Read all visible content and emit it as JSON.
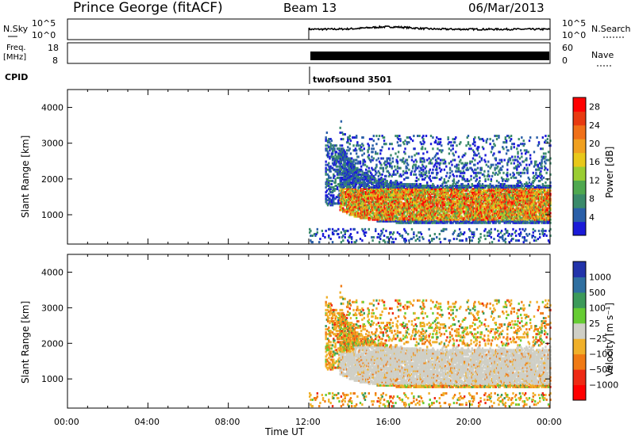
{
  "header": {
    "station": "Prince George (fitACF)",
    "beam": "Beam 13",
    "date": "06/Mar/2013"
  },
  "side_labels": {
    "nsky": "N.Sky",
    "nsky_top": "10^5",
    "nsky_bottom": "10^0",
    "nsearch": "N.Search",
    "nsearch_top": "10^5",
    "nsearch_bottom": "10^0",
    "freq": "Freq.",
    "freq_unit": "[MHz]",
    "freq_top": "18",
    "freq_bottom": "8",
    "nave": "Nave",
    "nave_top": "60",
    "nave_bottom": "0",
    "cpid": "CPID",
    "cpid_value": "twofsound 3501"
  },
  "colors": {
    "power": [
      "#1b1bd8",
      "#2a5fa8",
      "#3a8a6a",
      "#4fa84f",
      "#9acd32",
      "#e8c81a",
      "#f0a020",
      "#f07018",
      "#e83a10",
      "#ff0000"
    ],
    "velocity": [
      "#2233aa",
      "#2f6fa0",
      "#3c9a5a",
      "#66cc33",
      "#cfcfc6",
      "#f0b02a",
      "#f07a14",
      "#ee2a14",
      "#ff0000"
    ]
  },
  "chart_data": [
    {
      "type": "heatmap",
      "ylabel": "Slant Range [km]",
      "xlabel": "",
      "x_ticks": [
        "00:00",
        "04:00",
        "08:00",
        "12:00",
        "16:00",
        "20:00",
        "00:00"
      ],
      "x_range_hours": [
        0,
        24
      ],
      "y_ticks": [
        1000,
        2000,
        3000,
        4000
      ],
      "ylim": [
        180,
        4500
      ],
      "colorbar_label": "Power [dB]",
      "colorbar_ticks": [
        "4",
        "8",
        "12",
        "16",
        "20",
        "24",
        "28"
      ],
      "clim": [
        0,
        30
      ],
      "data_start_hour": 12,
      "summary": "scatter begins ~12:00 UT; densest echoes 700-1800 km from 14:00-24:00 UT, max ~28 dB"
    },
    {
      "type": "heatmap",
      "ylabel": "Slant Range [km]",
      "xlabel": "Time UT",
      "x_ticks": [
        "00:00",
        "04:00",
        "08:00",
        "12:00",
        "16:00",
        "20:00",
        "00:00"
      ],
      "x_range_hours": [
        0,
        24
      ],
      "y_ticks": [
        1000,
        2000,
        3000,
        4000
      ],
      "ylim": [
        180,
        4500
      ],
      "colorbar_label": "Velocity [m s⁻¹]",
      "colorbar_ticks": [
        "1000",
        "500",
        "100",
        "25",
        "−25",
        "−100",
        "−500",
        "−1000"
      ],
      "data_start_hour": 12,
      "summary": "ground scatter (|v|<25) dominant 900-1800 km; positive/negative velocities scattered"
    }
  ]
}
